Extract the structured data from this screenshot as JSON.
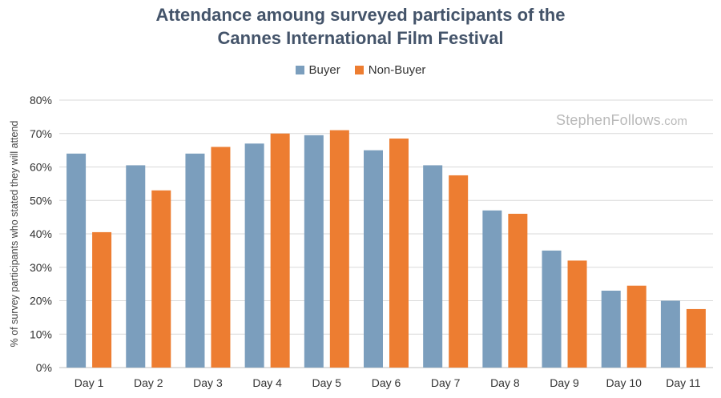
{
  "chart_data": {
    "type": "bar",
    "title": [
      "Attendance amoung surveyed participants of the",
      "Cannes International Film Festival"
    ],
    "ylabel": "% of survey participants who stated they will attend",
    "xlabel": "",
    "categories": [
      "Day 1",
      "Day 2",
      "Day 3",
      "Day 4",
      "Day 5",
      "Day 6",
      "Day 7",
      "Day 8",
      "Day 9",
      "Day 10",
      "Day 11"
    ],
    "series": [
      {
        "name": "Buyer",
        "color": "#7b9ebd",
        "values": [
          64,
          60.5,
          64,
          67,
          69.5,
          65,
          60.5,
          47,
          35,
          23,
          20
        ]
      },
      {
        "name": "Non-Buyer",
        "color": "#ed7d31",
        "values": [
          40.5,
          53,
          66,
          70,
          71,
          68.5,
          57.5,
          46,
          32,
          24.5,
          17.5
        ]
      }
    ],
    "ylim": [
      0,
      80
    ],
    "yticks": [
      "0%",
      "10%",
      "20%",
      "30%",
      "40%",
      "50%",
      "60%",
      "70%",
      "80%"
    ],
    "grid": true,
    "legend_position": "top-center"
  },
  "watermark": {
    "main": "StephenFollows",
    "suffix": ".com"
  }
}
